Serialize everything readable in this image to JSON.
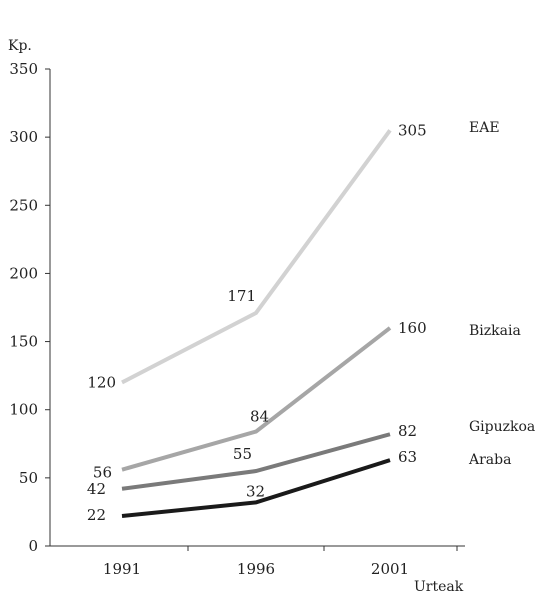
{
  "chart_data": {
    "type": "line",
    "ylabel": "Kp.",
    "xlabel": "Urteak",
    "ylim": [
      0,
      350
    ],
    "yticks": [
      0,
      50,
      100,
      150,
      200,
      250,
      300,
      350
    ],
    "categories": [
      "1991",
      "1996",
      "2001"
    ],
    "grid": false,
    "legend": "right",
    "series": [
      {
        "name": "EAE",
        "values": [
          120,
          171,
          305
        ],
        "color": "#d2d2d2"
      },
      {
        "name": "Bizkaia",
        "values": [
          56,
          84,
          160
        ],
        "color": "#a6a6a6"
      },
      {
        "name": "Gipuzkoa",
        "values": [
          42,
          55,
          82
        ],
        "color": "#7a7a7a"
      },
      {
        "name": "Araba",
        "values": [
          22,
          32,
          63
        ],
        "color": "#1a1a1a"
      }
    ]
  }
}
